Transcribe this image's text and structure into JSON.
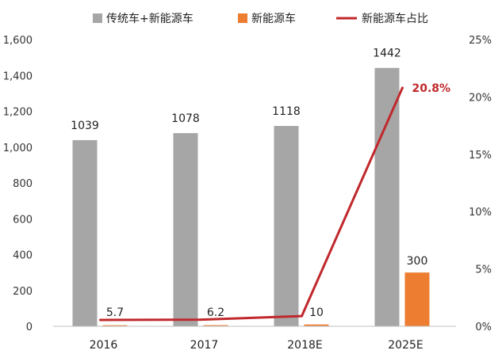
{
  "chart_data": {
    "type": "bar",
    "categories": [
      "2016",
      "2017",
      "2018E",
      "2025E"
    ],
    "series": [
      {
        "name": "传统车+新能源车",
        "kind": "bar",
        "axis": "left",
        "color": "#a6a6a6",
        "values": [
          1039,
          1078,
          1118,
          1442
        ],
        "labels": [
          "1039",
          "1078",
          "1118",
          "1442"
        ]
      },
      {
        "name": "新能源车",
        "kind": "bar",
        "axis": "left",
        "color": "#ed7d31",
        "values": [
          5.7,
          6.2,
          10,
          300
        ],
        "labels": [
          "5.7",
          "6.2",
          "10",
          "300"
        ]
      },
      {
        "name": "新能源车占比",
        "kind": "line",
        "axis": "right",
        "color": "#c0282c",
        "values": [
          0.55,
          0.58,
          0.89,
          20.8
        ],
        "labels": [
          "",
          "",
          "",
          "20.8%"
        ]
      }
    ],
    "y_left": {
      "min": 0,
      "max": 1600,
      "step": 200,
      "ticks": [
        "0",
        "200",
        "400",
        "600",
        "800",
        "1,000",
        "1,200",
        "1,400",
        "1,600"
      ]
    },
    "y_right": {
      "min": 0,
      "max": 25,
      "step": 5,
      "ticks": [
        "0%",
        "5%",
        "10%",
        "15%",
        "20%",
        "25%"
      ]
    },
    "legend": {
      "position": "top"
    },
    "grid": false
  }
}
